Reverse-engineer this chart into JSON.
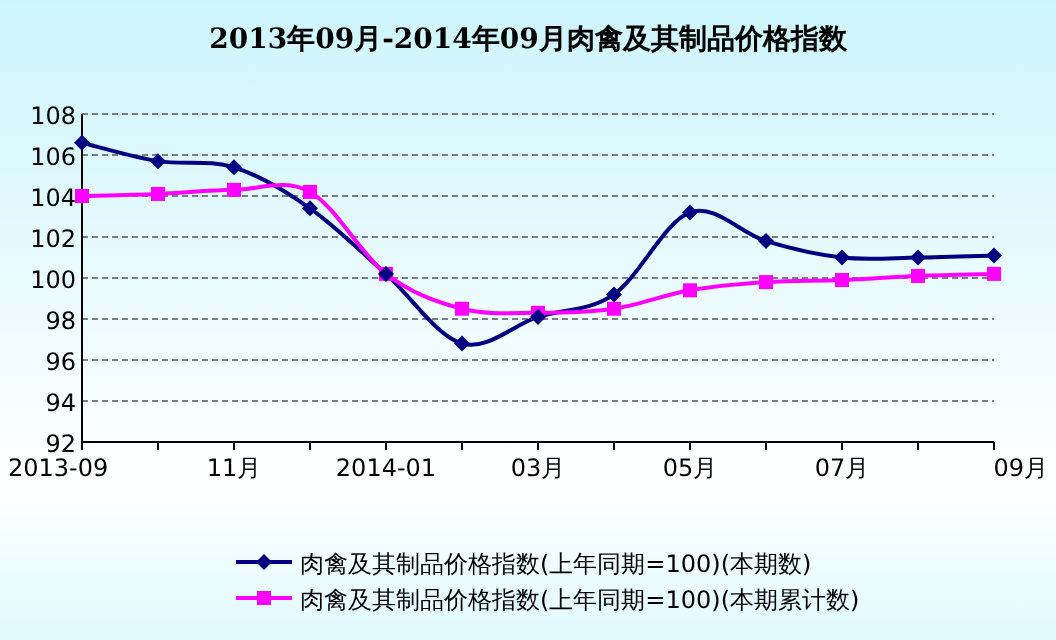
{
  "chart_data": {
    "type": "line",
    "title": "2013年09月-2014年09月肉禽及其制品价格指数",
    "categories": [
      "2013-09",
      null,
      "11月",
      null,
      "2014-01",
      null,
      "03月",
      null,
      "05月",
      null,
      "07月",
      null,
      "09月"
    ],
    "series": [
      {
        "name": "肉禽及其制品价格指数(上年同期=100)(本期数)",
        "color": "#000080",
        "marker": "diamond",
        "values": [
          106.6,
          105.7,
          105.4,
          103.4,
          100.2,
          96.8,
          98.1,
          99.2,
          103.2,
          101.8,
          101.0,
          101.0,
          101.1
        ]
      },
      {
        "name": "肉禽及其制品价格指数(上年同期=100)(本期累计数)",
        "color": "#ff00ff",
        "marker": "square",
        "values": [
          104.0,
          104.1,
          104.3,
          104.2,
          100.2,
          98.5,
          98.3,
          98.5,
          99.4,
          99.8,
          99.9,
          100.1,
          100.2
        ]
      }
    ],
    "ylim": [
      92,
      108
    ],
    "yticks": [
      92,
      94,
      96,
      98,
      100,
      102,
      104,
      106,
      108
    ],
    "grid": "y",
    "legend": "bottom"
  }
}
